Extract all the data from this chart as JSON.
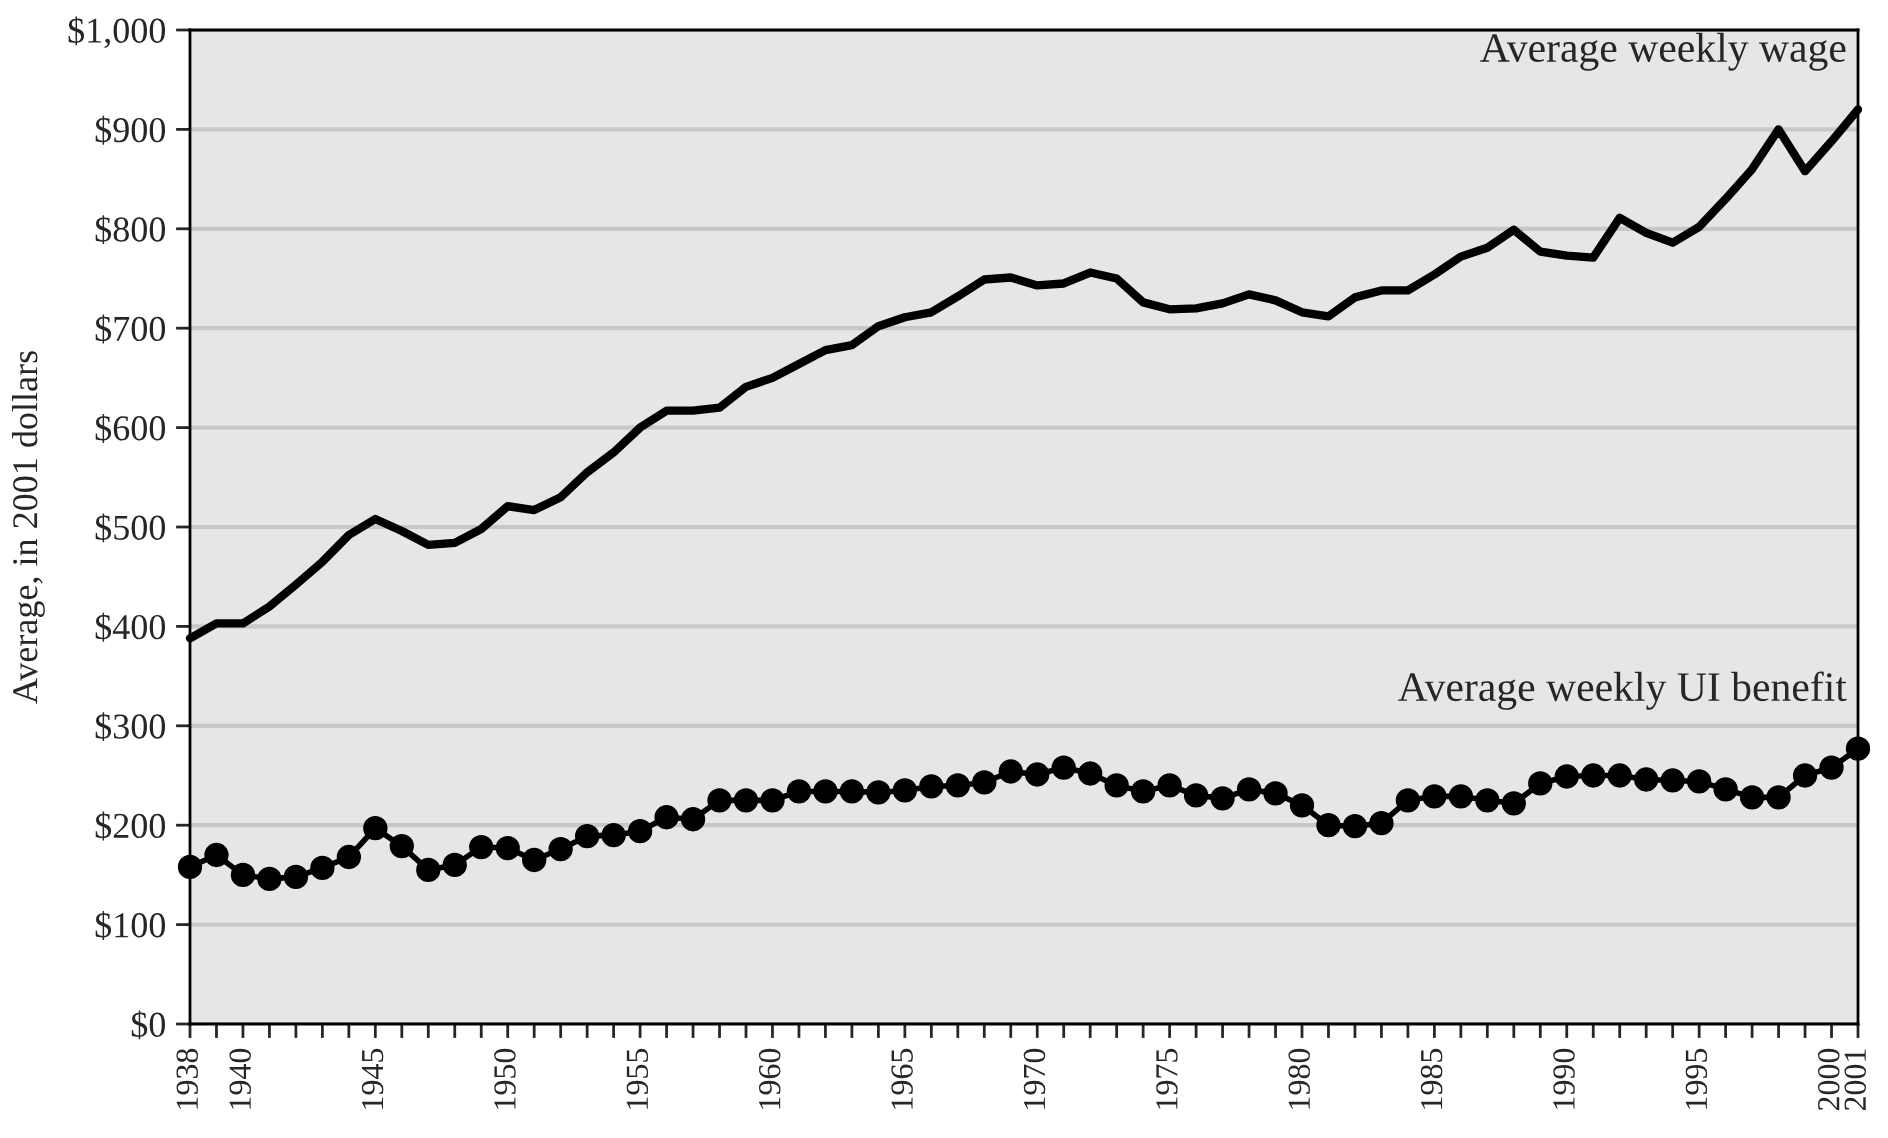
{
  "chart_data": {
    "type": "line",
    "ylabel": "Average, in 2001 dollars",
    "x": [
      1938,
      1939,
      1940,
      1941,
      1942,
      1943,
      1944,
      1945,
      1946,
      1947,
      1948,
      1949,
      1950,
      1951,
      1952,
      1953,
      1954,
      1955,
      1956,
      1957,
      1958,
      1959,
      1960,
      1961,
      1962,
      1963,
      1964,
      1965,
      1966,
      1967,
      1968,
      1969,
      1970,
      1971,
      1972,
      1973,
      1974,
      1975,
      1976,
      1977,
      1978,
      1979,
      1980,
      1981,
      1982,
      1983,
      1984,
      1985,
      1986,
      1987,
      1988,
      1989,
      1990,
      1991,
      1992,
      1993,
      1994,
      1995,
      1996,
      1997,
      1998,
      1999,
      2000,
      2001
    ],
    "series": [
      {
        "name": "Average weekly wage",
        "color": "#000000",
        "marker": "none",
        "values": [
          388,
          403,
          403,
          420,
          442,
          465,
          492,
          508,
          496,
          482,
          484,
          498,
          521,
          517,
          530,
          555,
          575,
          600,
          617,
          617,
          620,
          641,
          650,
          664,
          678,
          683,
          702,
          711,
          716,
          732,
          749,
          751,
          743,
          745,
          756,
          750,
          726,
          719,
          720,
          725,
          734,
          728,
          716,
          712,
          731,
          738,
          738,
          754,
          772,
          781,
          799,
          777,
          773,
          771,
          811,
          796,
          786,
          802,
          830,
          860,
          900,
          858,
          888,
          920
        ]
      },
      {
        "name": "Average weekly UI benefit",
        "color": "#000000",
        "marker": "circle",
        "values": [
          158,
          170,
          150,
          146,
          148,
          157,
          168,
          197,
          179,
          155,
          160,
          178,
          177,
          165,
          176,
          189,
          190,
          194,
          208,
          206,
          225,
          225,
          225,
          234,
          234,
          234,
          233,
          235,
          239,
          240,
          243,
          254,
          251,
          258,
          252,
          240,
          234,
          240,
          230,
          227,
          236,
          232,
          220,
          200,
          199,
          202,
          225,
          229,
          229,
          225,
          222,
          242,
          249,
          250,
          250,
          246,
          245,
          244,
          236,
          228,
          228,
          250,
          258,
          277
        ]
      }
    ],
    "xlim": [
      1938,
      2001
    ],
    "xticks": [
      1938,
      1940,
      1945,
      1950,
      1955,
      1960,
      1965,
      1970,
      1975,
      1980,
      1985,
      1990,
      1995,
      2000,
      2001
    ],
    "ylim": [
      0,
      1000
    ],
    "yticks": [
      {
        "value": 0,
        "label": "$0"
      },
      {
        "value": 100,
        "label": "$100"
      },
      {
        "value": 200,
        "label": "$200"
      },
      {
        "value": 300,
        "label": "$300"
      },
      {
        "value": 400,
        "label": "$400"
      },
      {
        "value": 500,
        "label": "$500"
      },
      {
        "value": 600,
        "label": "$600"
      },
      {
        "value": 700,
        "label": "$700"
      },
      {
        "value": 800,
        "label": "$800"
      },
      {
        "value": 900,
        "label": "$900"
      },
      {
        "value": 1000,
        "label": "$1,000"
      }
    ],
    "grid": "y",
    "legend": false,
    "line_style": "solid"
  }
}
